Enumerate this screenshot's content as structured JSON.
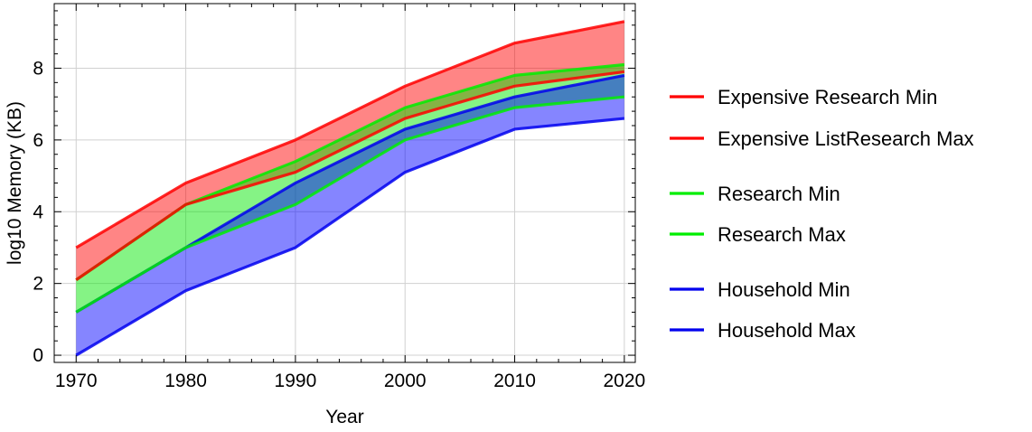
{
  "chart_data": {
    "type": "area",
    "xlabel": "Year",
    "ylabel": "log10 Memory (KB)",
    "x": [
      1970,
      1980,
      1990,
      2000,
      2010,
      2020
    ],
    "xlim": [
      1968,
      2021
    ],
    "ylim": [
      -0.2,
      9.8
    ],
    "xticks": [
      1970,
      1980,
      1990,
      2000,
      2010,
      2020
    ],
    "yticks": [
      0,
      2,
      4,
      6,
      8
    ],
    "grid": true,
    "legend_position": "right",
    "bands": [
      {
        "group": "expensive",
        "color": "#ff0000",
        "fill": "rgba(255,0,0,0.48)",
        "lower": [
          2.1,
          4.2,
          5.1,
          6.6,
          7.5,
          7.9
        ],
        "upper": [
          3.0,
          4.8,
          6.0,
          7.5,
          8.7,
          9.3
        ]
      },
      {
        "group": "research",
        "color": "#00ee00",
        "fill": "rgba(0,230,0,0.48)",
        "lower": [
          1.2,
          3.0,
          4.2,
          6.0,
          6.9,
          7.2
        ],
        "upper": [
          2.1,
          4.2,
          5.4,
          6.9,
          7.8,
          8.1
        ]
      },
      {
        "group": "household",
        "color": "#0000ee",
        "fill": "rgba(0,0,255,0.48)",
        "lower": [
          0.0,
          1.8,
          3.0,
          5.1,
          6.3,
          6.6
        ],
        "upper": [
          1.2,
          3.0,
          4.8,
          6.3,
          7.2,
          7.8
        ]
      }
    ],
    "legend": [
      {
        "name": "Expensive Research Min",
        "color": "#ff0000"
      },
      {
        "name": "Expensive ListResearch Max",
        "color": "#ff0000"
      },
      {
        "name": "Research Min",
        "color": "#00ee00"
      },
      {
        "name": "Research Max",
        "color": "#00ee00"
      },
      {
        "name": "Household Min",
        "color": "#0000ee"
      },
      {
        "name": "Household Max",
        "color": "#0000ee"
      }
    ]
  }
}
